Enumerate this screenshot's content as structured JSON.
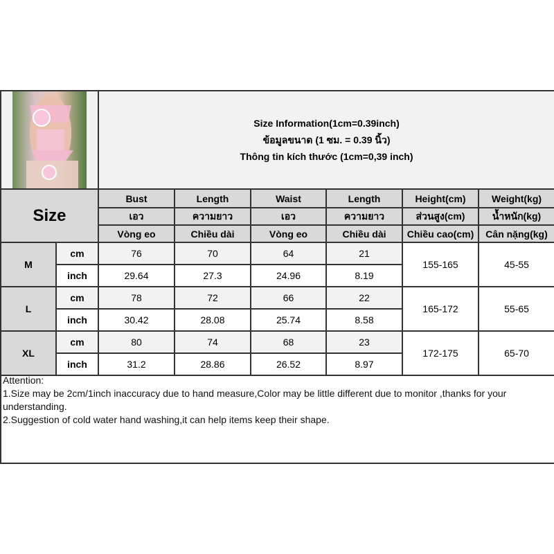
{
  "title": {
    "line1": "Size Information(1cm=0.39inch)",
    "line2": "ข้อมูลขนาด (1 ซม. = 0.39 นิ้ว)",
    "line3": "Thông tin kích thước (1cm=0,39 inch)"
  },
  "size_header": "Size",
  "columns": [
    {
      "en": "Bust",
      "th": "เอว",
      "vi": "Vòng eo"
    },
    {
      "en": "Length",
      "th": "ความยาว",
      "vi": "Chiều dài"
    },
    {
      "en": "Waist",
      "th": "เอว",
      "vi": "Vòng eo"
    },
    {
      "en": "Length",
      "th": "ความยาว",
      "vi": "Chiều dài"
    },
    {
      "en": "Height(cm)",
      "th": "ส่วนสูง(cm)",
      "vi": "Chiều cao(cm)"
    },
    {
      "en": "Weight(kg)",
      "th": "น้ำหนัก(kg)",
      "vi": "Cân nặng(kg)"
    }
  ],
  "units": {
    "cm": "cm",
    "inch": "inch"
  },
  "sizes": [
    {
      "size": "M",
      "cm": [
        "76",
        "70",
        "64",
        "21"
      ],
      "inch": [
        "29.64",
        "27.3",
        "24.96",
        "8.19"
      ],
      "height": "155-165",
      "weight": "45-55"
    },
    {
      "size": "L",
      "cm": [
        "78",
        "72",
        "66",
        "22"
      ],
      "inch": [
        "30.42",
        "28.08",
        "25.74",
        "8.58"
      ],
      "height": "165-172",
      "weight": "55-65"
    },
    {
      "size": "XL",
      "cm": [
        "80",
        "74",
        "68",
        "23"
      ],
      "inch": [
        "31.2",
        "28.86",
        "26.52",
        "8.97"
      ],
      "height": "172-175",
      "weight": "65-70"
    }
  ],
  "attention": {
    "heading": "Attention:",
    "note1": "1.Size may be 2cm/1inch inaccuracy due to hand measure,Color may be little different due to monitor ,thanks for your understanding.",
    "note2": "2.Suggestion of cold water hand washing,it can help items keep their shape."
  },
  "colors": {
    "header_bg": "#d9d9d9",
    "light_bg": "#f2f2f2",
    "border": "#333333"
  }
}
